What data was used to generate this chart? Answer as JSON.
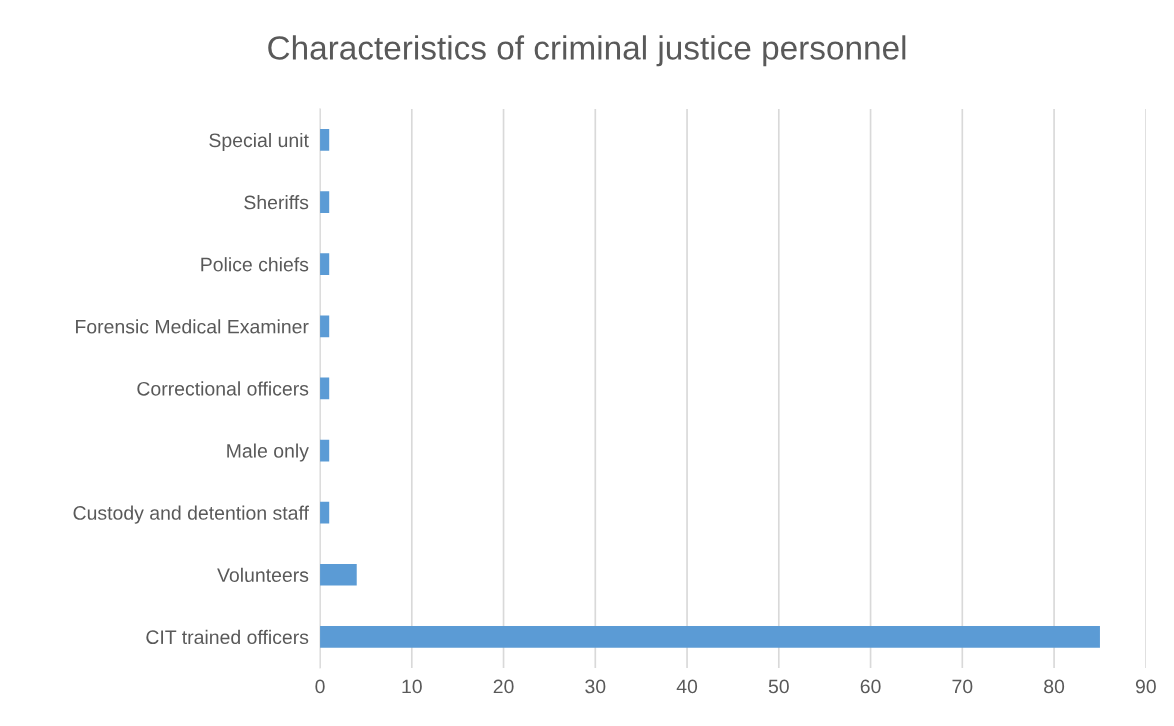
{
  "chart_data": {
    "type": "bar",
    "orientation": "horizontal",
    "title": "Characteristics of criminal justice personnel",
    "categories": [
      "Special unit",
      "Sheriffs",
      "Police chiefs",
      "Forensic Medical Examiner",
      "Correctional officers",
      "Male only",
      "Custody and detention staff",
      "Volunteers",
      "CIT trained officers"
    ],
    "values": [
      1,
      1,
      1,
      1,
      1,
      1,
      1,
      4,
      85
    ],
    "color": "#5b9bd5",
    "xlim": [
      0,
      90
    ],
    "xticks": [
      0,
      10,
      20,
      30,
      40,
      50,
      60,
      70,
      80,
      90
    ],
    "grid": "x",
    "legend": false
  }
}
